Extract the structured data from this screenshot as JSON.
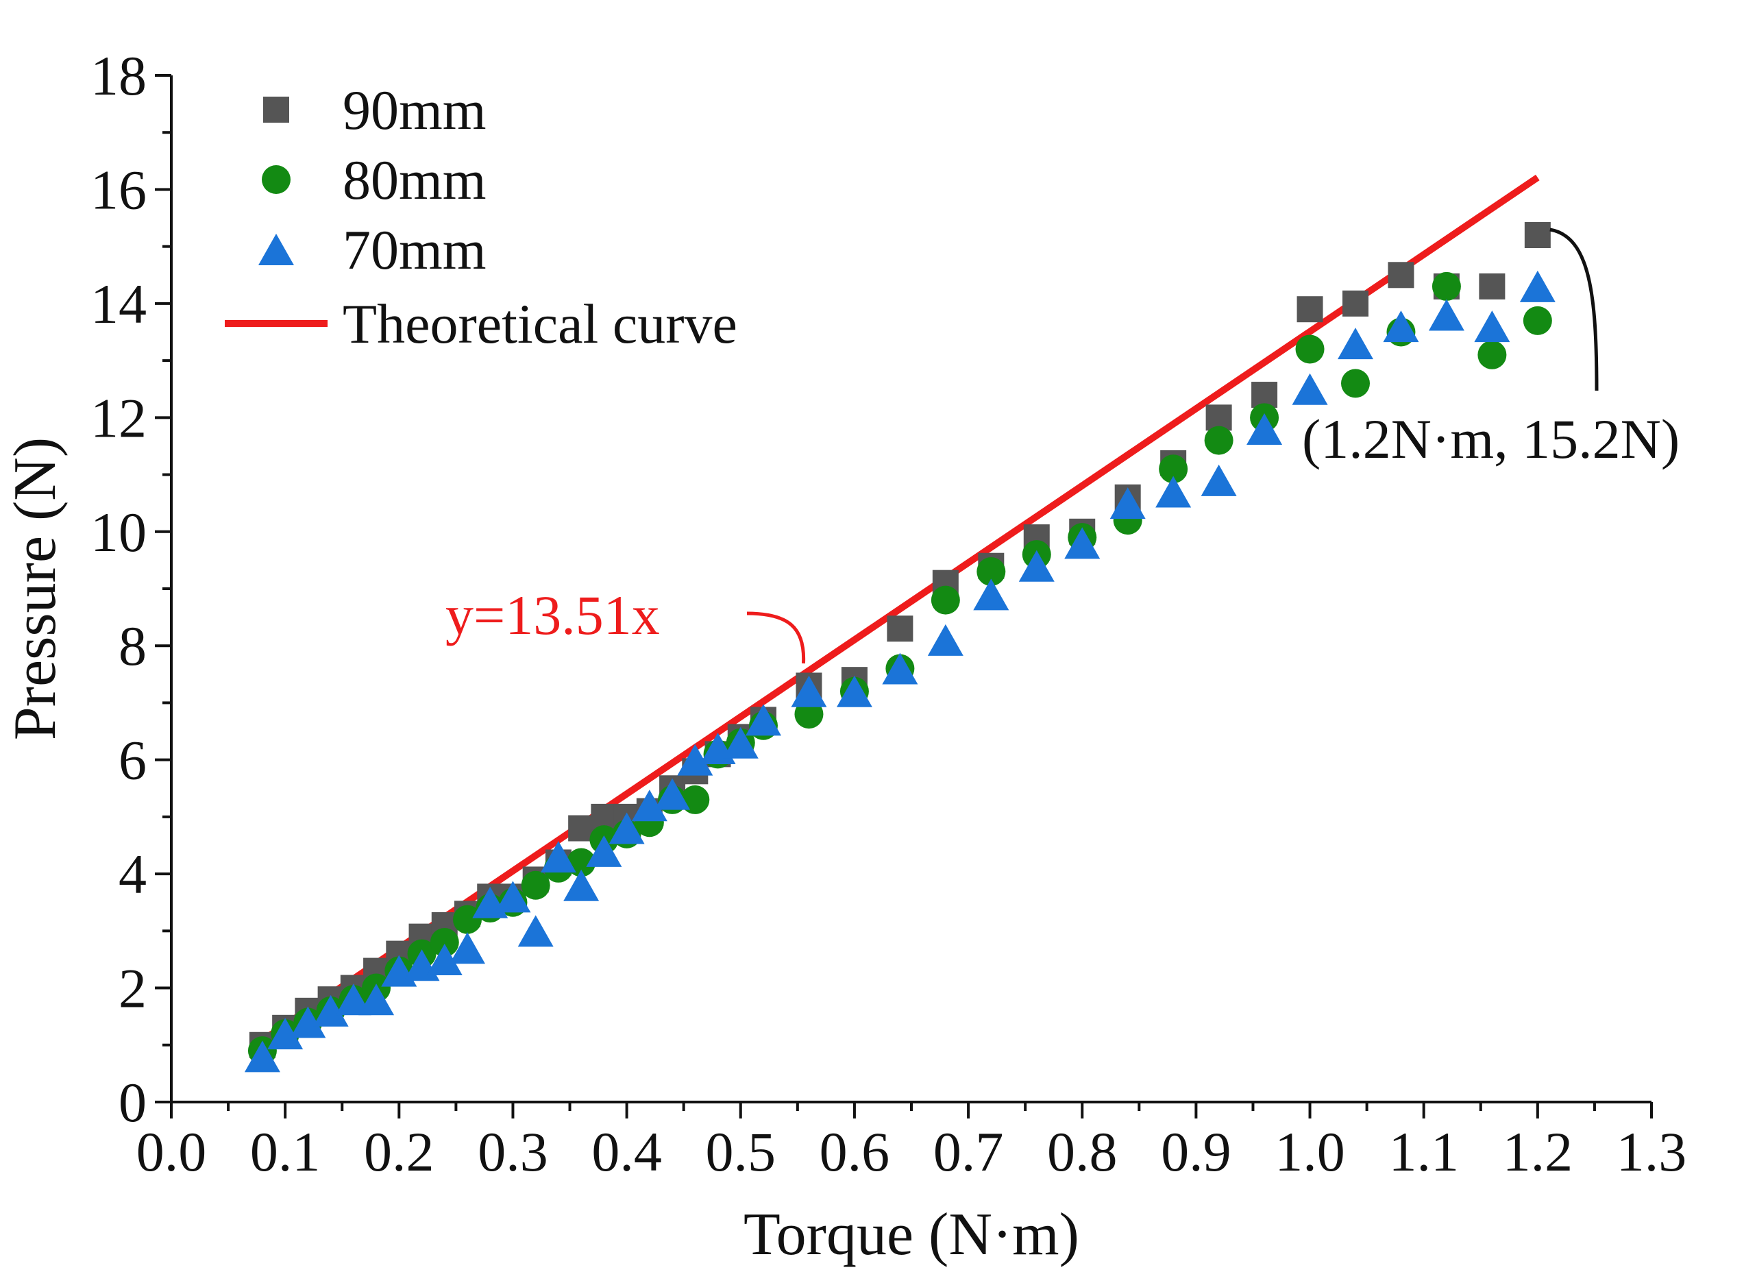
{
  "chart_data": {
    "type": "scatter",
    "title": "",
    "xlabel": "Torque (N·m)",
    "ylabel": "Pressure (N)",
    "xlim": [
      0.0,
      1.3
    ],
    "ylim": [
      0,
      18
    ],
    "x_ticks": [
      "0.0",
      "0.1",
      "0.2",
      "0.3",
      "0.4",
      "0.5",
      "0.6",
      "0.7",
      "0.8",
      "0.9",
      "1.0",
      "1.1",
      "1.2",
      "1.3"
    ],
    "y_ticks": [
      "0",
      "2",
      "4",
      "6",
      "8",
      "10",
      "12",
      "14",
      "16",
      "18"
    ],
    "grid": false,
    "legend_position": "top-left",
    "series": [
      {
        "name": "90mm",
        "marker": "square",
        "color": "#555555",
        "x": [
          0.08,
          0.1,
          0.12,
          0.14,
          0.16,
          0.18,
          0.2,
          0.22,
          0.24,
          0.26,
          0.28,
          0.3,
          0.32,
          0.34,
          0.36,
          0.38,
          0.4,
          0.42,
          0.44,
          0.46,
          0.48,
          0.5,
          0.52,
          0.56,
          0.6,
          0.64,
          0.68,
          0.72,
          0.76,
          0.8,
          0.84,
          0.88,
          0.92,
          0.96,
          1.0,
          1.04,
          1.08,
          1.12,
          1.16,
          1.2
        ],
        "y": [
          1.0,
          1.3,
          1.6,
          1.8,
          2.0,
          2.3,
          2.6,
          2.9,
          3.1,
          3.3,
          3.6,
          3.6,
          3.9,
          4.2,
          4.8,
          5.0,
          5.0,
          5.1,
          5.5,
          5.8,
          6.1,
          6.4,
          6.7,
          7.3,
          7.4,
          8.3,
          9.1,
          9.4,
          9.9,
          10.0,
          10.6,
          11.2,
          12.0,
          12.4,
          13.9,
          14.0,
          14.5,
          14.3,
          14.3,
          15.2
        ]
      },
      {
        "name": "80mm",
        "marker": "circle",
        "color": "#138a13",
        "x": [
          0.08,
          0.1,
          0.12,
          0.14,
          0.16,
          0.18,
          0.2,
          0.22,
          0.24,
          0.26,
          0.28,
          0.3,
          0.32,
          0.34,
          0.36,
          0.38,
          0.4,
          0.42,
          0.44,
          0.46,
          0.48,
          0.5,
          0.52,
          0.56,
          0.6,
          0.64,
          0.68,
          0.72,
          0.76,
          0.8,
          0.84,
          0.88,
          0.92,
          0.96,
          1.0,
          1.04,
          1.08,
          1.12,
          1.16,
          1.2
        ],
        "y": [
          0.9,
          1.2,
          1.4,
          1.6,
          1.8,
          2.0,
          2.3,
          2.6,
          2.8,
          3.2,
          3.4,
          3.5,
          3.8,
          4.1,
          4.2,
          4.6,
          4.7,
          4.9,
          5.3,
          5.3,
          6.1,
          6.3,
          6.6,
          6.8,
          7.2,
          7.6,
          8.8,
          9.3,
          9.6,
          9.9,
          10.2,
          11.1,
          11.6,
          12.0,
          13.2,
          12.6,
          13.5,
          14.3,
          13.1,
          13.7
        ]
      },
      {
        "name": "70mm",
        "marker": "triangle",
        "color": "#1b74d8",
        "x": [
          0.08,
          0.1,
          0.12,
          0.14,
          0.16,
          0.18,
          0.2,
          0.22,
          0.24,
          0.26,
          0.28,
          0.3,
          0.32,
          0.34,
          0.36,
          0.38,
          0.4,
          0.42,
          0.44,
          0.46,
          0.48,
          0.5,
          0.52,
          0.56,
          0.6,
          0.64,
          0.68,
          0.72,
          0.76,
          0.8,
          0.84,
          0.88,
          0.92,
          0.96,
          1.0,
          1.04,
          1.08,
          1.12,
          1.16,
          1.2
        ],
        "y": [
          0.8,
          1.2,
          1.4,
          1.6,
          1.8,
          1.8,
          2.3,
          2.4,
          2.5,
          2.7,
          3.5,
          3.6,
          3.0,
          4.3,
          3.8,
          4.4,
          4.8,
          5.2,
          5.4,
          6.0,
          6.2,
          6.3,
          6.7,
          7.2,
          7.2,
          7.6,
          8.1,
          8.9,
          9.4,
          9.8,
          10.5,
          10.7,
          10.9,
          11.8,
          12.5,
          13.3,
          13.6,
          13.8,
          13.6,
          14.3
        ]
      },
      {
        "name": "Theoretical curve",
        "marker": "line",
        "color": "#ee1c1c",
        "x": [
          0.08,
          1.2
        ],
        "y": [
          1.08,
          16.21
        ]
      }
    ],
    "annotations": [
      {
        "text": "y=13.51x",
        "color": "#ee1c1c",
        "target_x": 0.56,
        "target_y": 7.57
      },
      {
        "text": "(1.2N·m, 15.2N)",
        "color": "#111111",
        "target_x": 1.2,
        "target_y": 15.2
      }
    ]
  }
}
